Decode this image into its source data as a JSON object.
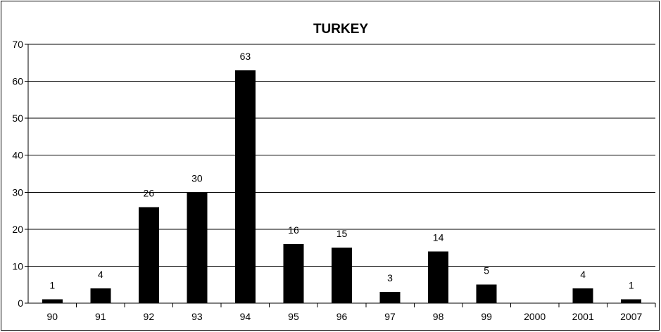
{
  "chart_data": {
    "type": "bar",
    "title": "TURKEY",
    "xlabel": "",
    "ylabel": "",
    "categories": [
      "90",
      "91",
      "92",
      "93",
      "94",
      "95",
      "96",
      "97",
      "98",
      "99",
      "2000",
      "2001",
      "2007"
    ],
    "values": [
      1,
      4,
      26,
      30,
      63,
      16,
      15,
      3,
      14,
      5,
      0,
      4,
      1
    ],
    "data_labels": [
      "1",
      "4",
      "26",
      "30",
      "63",
      "16",
      "15",
      "3",
      "14",
      "5",
      "",
      "4",
      "1"
    ],
    "ylim": [
      0,
      70
    ],
    "yticks": [
      "0",
      "10",
      "20",
      "30",
      "40",
      "50",
      "60",
      "70"
    ],
    "grid": true,
    "legend": "none",
    "bar_color": "#000000",
    "gridline_color": "#000000"
  }
}
